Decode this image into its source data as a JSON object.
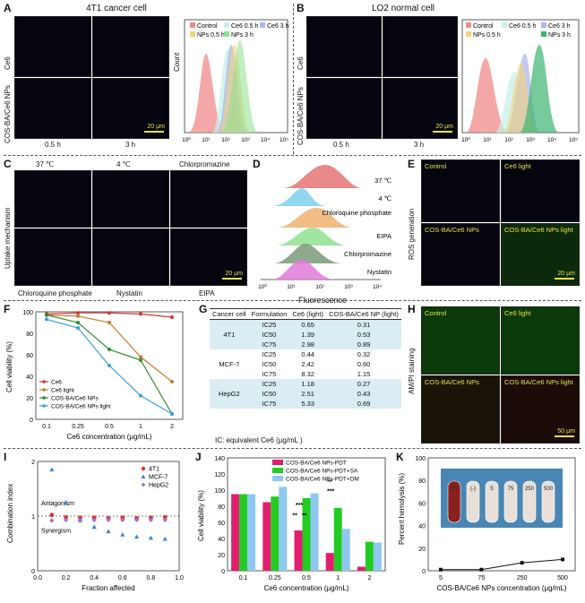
{
  "panels": {
    "A": {
      "letter": "A",
      "title": "4T1 cancer cell",
      "row_labels": [
        "Ce6",
        "COS-BA/Ce6 NPs"
      ],
      "col_labels": [
        "0.5 h",
        "3 h"
      ],
      "scale": "20 μm"
    },
    "B": {
      "letter": "B",
      "title": "LO2 normal cell",
      "row_labels": [
        "Ce6",
        "COS-BA/Ce6 NPs"
      ],
      "col_labels": [
        "0.5 h",
        "3 h"
      ],
      "scale": "20 μm"
    },
    "C": {
      "letter": "C",
      "top_labels": [
        "37 ℃",
        "4 ℃",
        "Chlorpromazine"
      ],
      "bottom_labels": [
        "Chloroquine phosphate",
        "Nystatin",
        "EIPA"
      ],
      "side_label": "Uptake mechanism",
      "scale": "20 μm"
    },
    "D": {
      "letter": "D",
      "xlabel": "Fluorescence",
      "tracks": [
        "37 ℃",
        "4 ℃",
        "Chloroquine phosphate",
        "EIPA",
        "Chlorpromazine",
        "Nystatin"
      ]
    },
    "E": {
      "letter": "E",
      "side_label": "ROS generation",
      "cells": [
        "Control",
        "Ce6 light",
        "COS-BA/Ce6 NPs",
        "COS-BA/Ce6 NPs light"
      ],
      "scale": "20 μm"
    },
    "F": {
      "letter": "F"
    },
    "G": {
      "letter": "G",
      "footnote": "IC: equivalent Ce6 (μg/mL )"
    },
    "H": {
      "letter": "H",
      "side_label": "AM/PI staining",
      "cells": [
        "Control",
        "Ce6 light",
        "COS-BA/Ce6 NPs",
        "COS-BA/Ce6 NPs light"
      ],
      "scale": "50 μm"
    },
    "I": {
      "letter": "I",
      "antagonism": "Antagonism",
      "synergism": "Synergism"
    },
    "J": {
      "letter": "J"
    },
    "K": {
      "letter": "K",
      "tube_labels": [
        "(+)",
        "(-)",
        "5",
        "75",
        "250",
        "500"
      ]
    }
  },
  "flow_A": {
    "ylabel": "Count",
    "legend": [
      "Control",
      "Ce6 0.5 h",
      "Ce6 3 h",
      "NPs 0.5 h",
      "NPs 3 h"
    ],
    "xticks": [
      "10⁰",
      "10¹",
      "10²",
      "10³",
      "10⁴",
      "10⁵"
    ]
  },
  "flow_B": {
    "legend": [
      "Control",
      "Ce6 0.5 h",
      "Ce6 3 h",
      "NPs 0.5 h",
      "NPs 3 h"
    ],
    "xticks": [
      "10⁰",
      "10¹",
      "10²",
      "10³",
      "10⁴",
      "10⁵"
    ]
  },
  "flow_D": {
    "xticks": [
      "10⁰",
      "10¹",
      "10²",
      "10³",
      "10⁴"
    ]
  },
  "table_G": {
    "headers": [
      "Cancer cell",
      "Formulation",
      "Ce6 (light)",
      "COS-BA/Ce6 NP (light)"
    ],
    "rows": [
      {
        "cell": "4T1",
        "rows": [
          [
            "IC25",
            "0.65",
            "0.31"
          ],
          [
            "IC50",
            "1.39",
            "0.53"
          ],
          [
            "IC75",
            "2.98",
            "0.89"
          ]
        ]
      },
      {
        "cell": "MCF-7",
        "rows": [
          [
            "IC25",
            "0.44",
            "0.32"
          ],
          [
            "IC50",
            "2.42",
            "0.60"
          ],
          [
            "IC75",
            "8.32",
            "1.15"
          ]
        ]
      },
      {
        "cell": "HepG2",
        "rows": [
          [
            "IC25",
            "1.18",
            "0.27"
          ],
          [
            "IC50",
            "2.51",
            "0.43"
          ],
          [
            "IC75",
            "5.33",
            "0.69"
          ]
        ]
      }
    ]
  },
  "colors": {
    "control": "#f08a8a",
    "ce6_05": "#c8f0e8",
    "ce6_3": "#a8b8f0",
    "nps_05": "#f5d27a",
    "nps_3": "#8ce08c",
    "red": "#e03030",
    "orange": "#c87a2a",
    "green": "#2e8b2e",
    "blue": "#3aa0d8",
    "magenta": "#e0206e",
    "lime": "#22cc22",
    "sky": "#8ec8f0"
  },
  "chart_data": [
    {
      "type": "line",
      "title": "",
      "xlabel": "Ce6 concentration (μg/mL)",
      "ylabel": "Cell viability (%)",
      "categories": [
        "0.1",
        "0.25",
        "0.5",
        "1",
        "2"
      ],
      "ylim": [
        0,
        100
      ],
      "yticks": [
        "0",
        "20",
        "40",
        "60",
        "80",
        "100"
      ],
      "legend_position": "bottom-left",
      "series": [
        {
          "name": "Ce6",
          "values": [
            98,
            99,
            99,
            98,
            95
          ]
        },
        {
          "name": "Ce6 light",
          "values": [
            97,
            96,
            90,
            58,
            35
          ]
        },
        {
          "name": "COS-BA/Ce6 NPs",
          "values": [
            97,
            90,
            65,
            55,
            5
          ]
        },
        {
          "name": "COS-BA/Ce6 NPs light",
          "values": [
            93,
            85,
            50,
            22,
            5
          ]
        }
      ]
    },
    {
      "type": "scatter",
      "xlabel": "Fraction affected",
      "ylabel": "Combination index",
      "xlim": [
        0,
        1
      ],
      "ylim": [
        0,
        2
      ],
      "xticks": [
        "0.0",
        "0.2",
        "0.4",
        "0.6",
        "0.8",
        "1.0"
      ],
      "yticks": [
        "0",
        "1",
        "2"
      ],
      "legend_position": "top-right",
      "series": [
        {
          "name": "4T1",
          "x": [
            0.1,
            0.2,
            0.3,
            0.4,
            0.5,
            0.6,
            0.7,
            0.8,
            0.9
          ],
          "y": [
            1.02,
            0.98,
            0.97,
            0.97,
            0.96,
            0.97,
            0.96,
            0.97,
            0.98
          ]
        },
        {
          "name": "MCF-7",
          "x": [
            0.1,
            0.2,
            0.3,
            0.4,
            0.5,
            0.6,
            0.7,
            0.8,
            0.9
          ],
          "y": [
            1.85,
            1.25,
            0.92,
            0.8,
            0.72,
            0.66,
            0.62,
            0.6,
            0.58
          ]
        },
        {
          "name": "HepG2",
          "x": [
            0.1,
            0.2,
            0.3,
            0.4,
            0.5,
            0.6,
            0.7,
            0.8,
            0.9
          ],
          "y": [
            0.92,
            0.93,
            0.93,
            0.93,
            0.93,
            0.93,
            0.93,
            0.93,
            0.93
          ]
        }
      ]
    },
    {
      "type": "bar",
      "xlabel": "Ce6 concentration (μg/mL)",
      "ylabel": "Cell viability (%)",
      "categories": [
        "0.1",
        "0.25",
        "0.5",
        "1",
        "2"
      ],
      "ylim": [
        0,
        140
      ],
      "yticks": [
        "0",
        "20",
        "40",
        "60",
        "80",
        "100",
        "120",
        "140"
      ],
      "legend_position": "top",
      "series": [
        {
          "name": "COS-BA/Ce6 NPs-PDT",
          "values": [
            95,
            85,
            50,
            22,
            5
          ]
        },
        {
          "name": "COS-BA/Ce6 NPs-PDT+SA",
          "values": [
            95,
            92,
            90,
            78,
            36
          ]
        },
        {
          "name": "COS-BA/Ce6 NPs-PDT+DM",
          "values": [
            95,
            104,
            96,
            52,
            35
          ]
        }
      ],
      "annotations": [
        "**",
        "**",
        "***",
        "**",
        "***"
      ]
    },
    {
      "type": "line",
      "xlabel": "COS-BA/Ce6 NPs concentration (μg/mL)",
      "ylabel": "Percent hemolysis (%)",
      "categories": [
        "5",
        "75",
        "250",
        "500"
      ],
      "ylim": [
        0,
        100
      ],
      "yticks": [
        "0",
        "20",
        "40",
        "60",
        "80",
        "100"
      ],
      "series": [
        {
          "name": "",
          "values": [
            1,
            1,
            7,
            10
          ]
        }
      ]
    }
  ]
}
